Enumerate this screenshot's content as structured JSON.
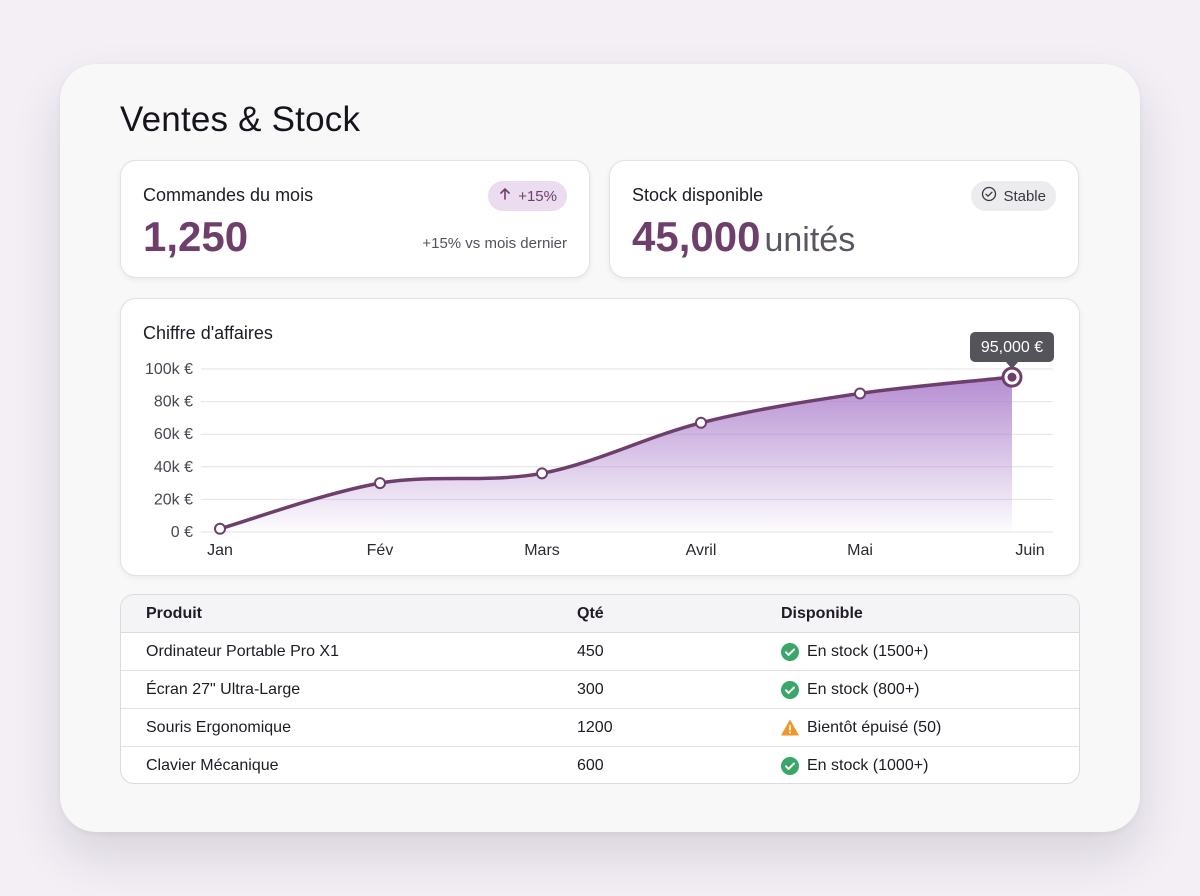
{
  "page": {
    "title": "Ventes & Stock"
  },
  "kpis": {
    "orders": {
      "label": "Commandes du mois",
      "value": "1,250",
      "badge": "+15%",
      "note": "+15% vs mois dernier",
      "badge_icon": "arrow-up-icon"
    },
    "stock": {
      "label": "Stock disponible",
      "value": "45,000",
      "unit": "unités",
      "badge": "Stable",
      "badge_icon": "check-circle-icon"
    }
  },
  "chart": {
    "title": "Chiffre d'affaires",
    "tooltip": "95,000 €"
  },
  "chart_data": {
    "type": "area",
    "title": "Chiffre d'affaires",
    "categories": [
      "Jan",
      "Fév",
      "Mars",
      "Avril",
      "Mai",
      "Juin"
    ],
    "series": [
      {
        "values": [
          2000,
          30000,
          36000,
          67000,
          85000,
          95000
        ]
      }
    ],
    "y_ticks": [
      "0 €",
      "20k €",
      "40k €",
      "60k €",
      "80k €",
      "100k €"
    ],
    "ylim": [
      0,
      100000
    ],
    "grid": true,
    "highlight_index": 5,
    "line_color": "#6e3f6b",
    "fill_color": "#a879c9"
  },
  "table": {
    "headers": [
      "Produit",
      "Qté",
      "Disponible"
    ],
    "rows": [
      {
        "product": "Ordinateur Portable Pro X1",
        "qty": "450",
        "status": "En stock (1500+)",
        "status_type": "ok",
        "status_icon": "check-circle-icon"
      },
      {
        "product": "Écran 27\" Ultra-Large",
        "qty": "300",
        "status": "En stock (800+)",
        "status_type": "ok",
        "status_icon": "check-circle-icon"
      },
      {
        "product": "Souris Ergonomique",
        "qty": "1200",
        "status": "Bientôt épuisé (50)",
        "status_type": "warning",
        "status_icon": "warning-triangle-icon"
      },
      {
        "product": "Clavier Mécanique",
        "qty": "600",
        "status": "En stock (1000+)",
        "status_type": "ok",
        "status_icon": "check-circle-icon"
      }
    ]
  },
  "colors": {
    "accent": "#6e3f6b",
    "ok": "#3aa66a",
    "warning": "#f0962a"
  }
}
